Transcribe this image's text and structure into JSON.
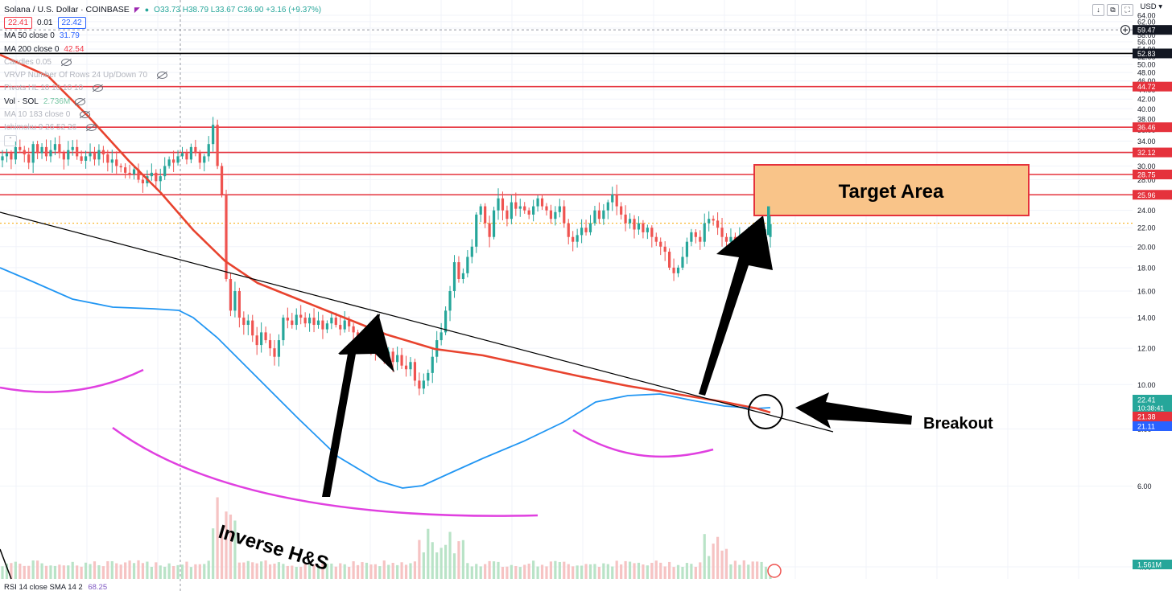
{
  "header": {
    "symbol_title": "Solana / U.S. Dollar · COINBASE",
    "ohlc": "O33.73 H38.79 L33.67 C36.90 +3.16 (+9.37%)",
    "bid": "22.41",
    "spread": "0.01",
    "ask": "22.42",
    "currency": "USD"
  },
  "indicators": [
    {
      "label": "MA 50 close 0",
      "value": "31.79",
      "color": "#2962ff",
      "muted": false,
      "eye": false
    },
    {
      "label": "MA 200 close 0",
      "value": "42.54",
      "color": "#f23645",
      "muted": false,
      "eye": false
    },
    {
      "label": "Candles 0.05",
      "value": "",
      "color": "",
      "muted": true,
      "eye": true
    },
    {
      "label": "VRVP Number Of Rows 24 Up/Down 70",
      "value": "",
      "color": "",
      "muted": true,
      "eye": true
    },
    {
      "label": "Pivots HL 10 10 10 10",
      "value": "",
      "color": "",
      "muted": true,
      "eye": true
    },
    {
      "label": "Vol · SOL",
      "value": "2.736M",
      "color": "#7bc8a6",
      "muted": false,
      "eye": true
    },
    {
      "label": "MA 10 183 close 0",
      "value": "",
      "color": "",
      "muted": true,
      "eye": true
    },
    {
      "label": "Ichimoku 9 26 52 26",
      "value": "",
      "color": "",
      "muted": true,
      "eye": true
    }
  ],
  "rsi_label": "RSI 14 close SMA 14 2",
  "rsi_value": "68.25",
  "colors": {
    "up": "#26a69a",
    "down": "#ef5350",
    "ma50": "#2196f3",
    "ma200": "#e8432e",
    "level": "#e5323c",
    "arc": "#e040e0",
    "target_fill": "#f9c489",
    "target_border": "#e5323c"
  },
  "chart_data": {
    "type": "candlestick",
    "yscale": "log",
    "ylim": [
      3.9,
      64.6
    ],
    "y_ticks": [
      "64.00",
      "62.00",
      "60.00",
      "58.00",
      "56.00",
      "54.00",
      "52.00",
      "50.00",
      "48.00",
      "46.00",
      "44.00",
      "42.00",
      "40.00",
      "38.00",
      "36.00",
      "34.00",
      "32.00",
      "30.00",
      "28.00",
      "26.00",
      "24.00",
      "22.00",
      "20.00",
      "18.00",
      "16.00",
      "14.00",
      "12.00",
      "10.00",
      "8.00",
      "6.00",
      "4.00"
    ],
    "close_path": [
      31.5,
      32.0,
      31.0,
      33.0,
      32.5,
      31.8,
      30.5,
      33.5,
      32.0,
      33.0,
      31.5,
      32.5,
      33.5,
      32.0,
      31.0,
      32.5,
      33.0,
      31.5,
      30.8,
      31.5,
      32.0,
      31.0,
      32.5,
      31.8,
      30.5,
      31.0,
      30.0,
      29.8,
      29.0,
      28.8,
      29.5,
      28.0,
      27.5,
      28.5,
      29.0,
      27.8,
      28.5,
      30.0,
      31.0,
      30.5,
      31.5,
      32.0,
      31.0,
      33.0,
      32.0,
      30.5,
      31.5,
      33.5,
      36.9,
      30.0,
      26.0,
      17.0,
      14.5,
      16.0,
      14.0,
      13.5,
      13.8,
      12.8,
      12.2,
      13.0,
      12.5,
      12.0,
      11.5,
      12.5,
      14.0,
      13.8,
      13.5,
      14.2,
      14.0,
      13.6,
      14.0,
      13.5,
      13.8,
      13.2,
      13.6,
      14.0,
      13.5,
      13.2,
      13.8,
      13.4,
      13.0,
      12.6,
      12.5,
      13.0,
      12.2,
      11.8,
      12.0,
      11.5,
      11.8,
      11.2,
      11.6,
      11.0,
      10.8,
      11.2,
      10.2,
      9.8,
      10.2,
      10.6,
      11.5,
      12.5,
      13.0,
      14.5,
      16.0,
      18.5,
      17.0,
      17.5,
      19.0,
      20.0,
      23.5,
      24.5,
      22.5,
      21.0,
      24.0,
      25.5,
      24.0,
      23.0,
      25.0,
      24.2,
      24.5,
      24.0,
      23.5,
      24.5,
      25.5,
      24.5,
      24.0,
      23.0,
      23.8,
      24.5,
      22.5,
      21.0,
      20.5,
      21.2,
      22.0,
      21.5,
      22.5,
      24.0,
      23.0,
      24.0,
      25.0,
      26.0,
      24.5,
      23.5,
      22.5,
      23.0,
      21.8,
      22.5,
      21.5,
      22.0,
      21.0,
      20.5,
      20.0,
      19.5,
      18.0,
      17.5,
      18.0,
      19.0,
      20.5,
      21.5,
      21.0,
      20.5,
      22.5,
      23.0,
      22.8,
      22.0,
      21.0,
      20.5,
      21.0,
      20.6,
      21.0,
      20.8,
      21.2,
      20.5,
      20.2,
      20.8,
      21.0,
      22.41
    ],
    "volume_note": "Vol · SOL 2.736M (relative bars)",
    "levels": [
      {
        "value": 52.83,
        "label": "52.83",
        "color": "black"
      },
      {
        "value": 44.72,
        "label": "44.72",
        "color": "red"
      },
      {
        "value": 36.46,
        "label": "36.46",
        "color": "red"
      },
      {
        "value": 32.12,
        "label": "32.12",
        "color": "red"
      },
      {
        "value": 28.75,
        "label": "28.75",
        "color": "red"
      },
      {
        "value": 25.96,
        "label": "25.96",
        "color": "red"
      }
    ],
    "price_tags": [
      {
        "label": "59.47",
        "color": "black"
      },
      {
        "label": "22.41",
        "sub": "10:38:41",
        "color": "teal"
      },
      {
        "label": "21.38",
        "color": "red"
      },
      {
        "label": "21.11",
        "color": "blue"
      },
      {
        "label": "1.561M",
        "color": "green"
      }
    ],
    "annotations": {
      "target": "Target Area",
      "breakout": "Breakout",
      "pattern": "Inverse H&S"
    }
  }
}
